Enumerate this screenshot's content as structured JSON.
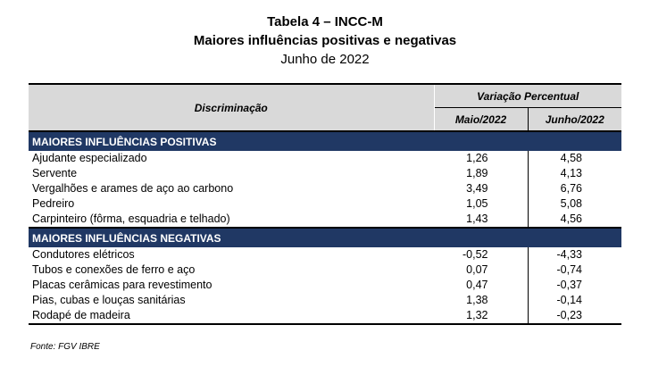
{
  "title": {
    "line1": "Tabela 4 – INCC-M",
    "line2": "Maiores influências positivas e negativas",
    "line3": "Junho de 2022"
  },
  "table": {
    "header": {
      "discriminacao": "Discriminação",
      "variacao": "Variação Percentual",
      "col_maio": "Maio/2022",
      "col_junho": "Junho/2022"
    },
    "positivas": {
      "label": "MAIORES INFLUÊNCIAS POSITIVAS",
      "rows": [
        {
          "name": "Ajudante especializado",
          "maio": "1,26",
          "junho": "4,58"
        },
        {
          "name": "Servente",
          "maio": "1,89",
          "junho": "4,13"
        },
        {
          "name": "Vergalhões e arames de aço ao carbono",
          "maio": "3,49",
          "junho": "6,76"
        },
        {
          "name": "Pedreiro",
          "maio": "1,05",
          "junho": "5,08"
        },
        {
          "name": "Carpinteiro (fôrma, esquadria e telhado)",
          "maio": "1,43",
          "junho": "4,56"
        }
      ]
    },
    "negativas": {
      "label": "MAIORES INFLUÊNCIAS NEGATIVAS",
      "rows": [
        {
          "name": "Condutores elétricos",
          "maio": "-0,52",
          "junho": "-4,33"
        },
        {
          "name": "Tubos e conexões de ferro e aço",
          "maio": "0,07",
          "junho": "-0,74"
        },
        {
          "name": "Placas cerâmicas para revestimento",
          "maio": "0,47",
          "junho": "-0,37"
        },
        {
          "name": "Pias, cubas e louças sanitárias",
          "maio": "1,38",
          "junho": "-0,14"
        },
        {
          "name": "Rodapé de madeira",
          "maio": "1,32",
          "junho": "-0,23"
        }
      ]
    }
  },
  "source": "Fonte: FGV IBRE",
  "colors": {
    "section_bg": "#203864",
    "header_bg": "#d9d9d9"
  }
}
